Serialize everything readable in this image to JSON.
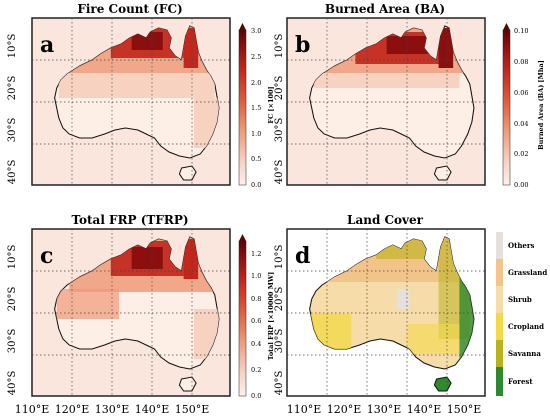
{
  "figure": {
    "panels": [
      {
        "id": "a",
        "title": "Fire Count (FC)",
        "colorbar_label": "FC [×100]",
        "colorbar_ticks": [
          "0.0",
          "0.5",
          "1.0",
          "1.5",
          "2.0",
          "2.5",
          "3.0"
        ],
        "colormap": [
          "#fdf1ec",
          "#f8d2c0",
          "#ef9a78",
          "#e05a3b",
          "#c2261d",
          "#8b0f0f",
          "#5a0505"
        ]
      },
      {
        "id": "b",
        "title": "Burned Area (BA)",
        "colorbar_label": "Burned Area (BA) [Mha]",
        "colorbar_ticks": [
          "0.00",
          "0.02",
          "0.04",
          "0.06",
          "0.08",
          "0.10"
        ],
        "colormap": [
          "#fdf1ec",
          "#f8d2c0",
          "#ef9a78",
          "#e05a3b",
          "#c2261d",
          "#8b0f0f",
          "#5a0505"
        ]
      },
      {
        "id": "c",
        "title": "Total FRP (TFRP)",
        "colorbar_label": "Total FRP [×10000 MW]",
        "colorbar_ticks": [
          "0.0",
          "0.2",
          "0.4",
          "0.6",
          "0.8",
          "1.0",
          "1.2"
        ],
        "colormap": [
          "#fdf1ec",
          "#f8d2c0",
          "#ef9a78",
          "#e05a3b",
          "#c2261d",
          "#8b0f0f",
          "#5a0505"
        ]
      },
      {
        "id": "d",
        "title": "Land Cover",
        "legend": [
          {
            "label": "Others",
            "color": "#e6e0dc"
          },
          {
            "label": "Grassland",
            "color": "#f2c48a"
          },
          {
            "label": "Shrub",
            "color": "#f6dca8"
          },
          {
            "label": "Cropland",
            "color": "#f3d94a"
          },
          {
            "label": "Savanna",
            "color": "#b9b21b"
          },
          {
            "label": "Forest",
            "color": "#2e8a2e"
          }
        ]
      }
    ],
    "lat_labels": [
      "10°S",
      "20°S",
      "30°S",
      "40°S"
    ],
    "lon_labels": [
      "110°E",
      "120°E",
      "130°E",
      "140°E",
      "150°E"
    ],
    "colors": {
      "map_background": "#fbe6de",
      "coast": "#111111",
      "grid": "#444444"
    }
  }
}
